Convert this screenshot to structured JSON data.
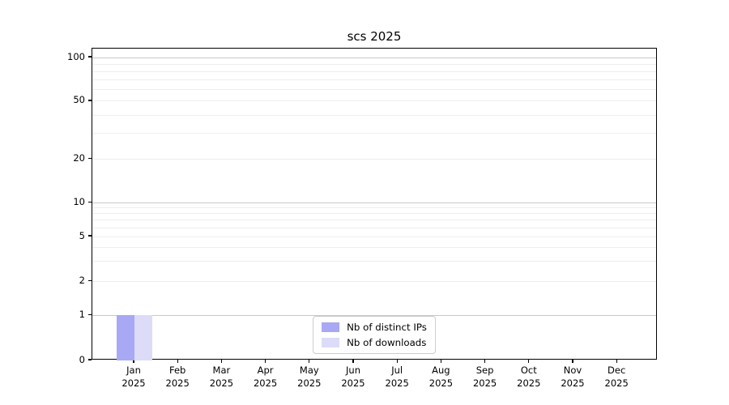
{
  "chart_data": {
    "type": "bar",
    "title": "scs 2025",
    "categories": [
      "Jan 2025",
      "Feb 2025",
      "Mar 2025",
      "Apr 2025",
      "May 2025",
      "Jun 2025",
      "Jul 2025",
      "Aug 2025",
      "Sep 2025",
      "Oct 2025",
      "Nov 2025",
      "Dec 2025"
    ],
    "series": [
      {
        "name": "Nb of distinct IPs",
        "color": "#a8a8f4",
        "values": [
          1,
          0,
          0,
          0,
          0,
          0,
          0,
          0,
          0,
          0,
          0,
          0
        ]
      },
      {
        "name": "Nb of downloads",
        "color": "#dcdcf8",
        "values": [
          1,
          0,
          0,
          0,
          0,
          0,
          0,
          0,
          0,
          0,
          0,
          0
        ]
      }
    ],
    "xlabel": "",
    "ylabel": "",
    "yscale": "symlog",
    "yticks": [
      0,
      1,
      2,
      5,
      10,
      20,
      50,
      100
    ],
    "ylim": [
      0,
      115
    ],
    "grid": "both",
    "legend_position": "lower center",
    "colors": {
      "axis": "#000000",
      "grid_major": "#c8c8c8",
      "grid_minor": "#eeeeee",
      "legend_border": "#cccccc",
      "background": "#ffffff"
    }
  }
}
